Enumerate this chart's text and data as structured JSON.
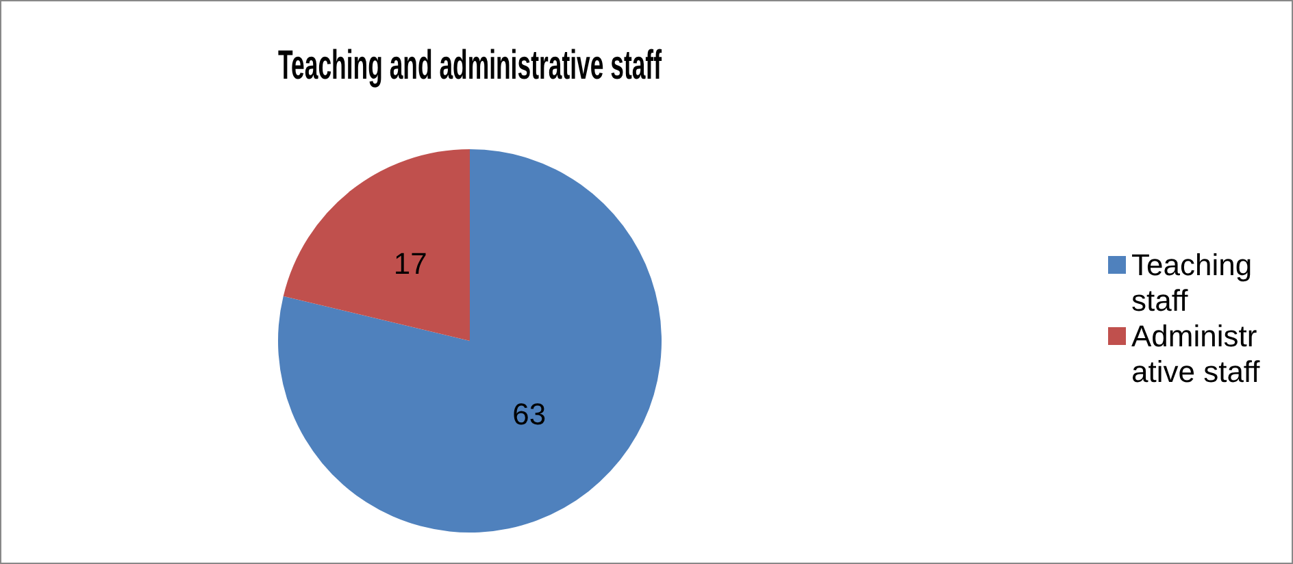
{
  "chart_data": {
    "type": "pie",
    "title": "Teaching and administrative staff",
    "categories": [
      "Teaching staff",
      "Administrative staff"
    ],
    "values": [
      63,
      17
    ],
    "colors": [
      "#4f81bd",
      "#c0504d"
    ],
    "data_labels": true,
    "legend": "right"
  }
}
